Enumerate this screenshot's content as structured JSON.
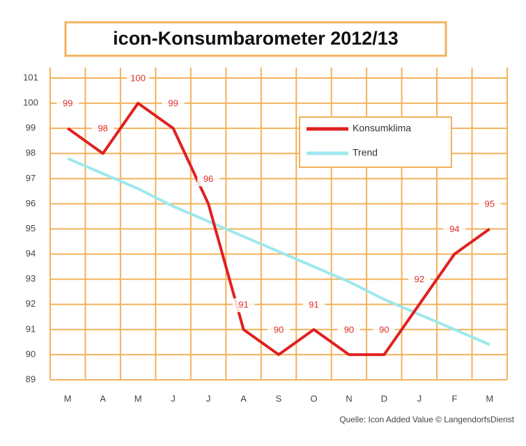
{
  "chart_data": {
    "type": "line",
    "title": "icon-Konsumbarometer 2012/13",
    "categories": [
      "M",
      "A",
      "M",
      "J",
      "J",
      "A",
      "S",
      "O",
      "N",
      "D",
      "J",
      "F",
      "M"
    ],
    "series": [
      {
        "name": "Konsumklima",
        "color": "#e02020",
        "values": [
          99,
          98,
          100,
          99,
          96,
          91,
          90,
          91,
          90,
          90,
          92,
          94,
          95
        ]
      },
      {
        "name": "Trend",
        "color": "#9ee8ee",
        "values": [
          97.8,
          97.2,
          96.6,
          95.9,
          95.3,
          94.7,
          94.1,
          93.5,
          92.9,
          92.2,
          91.6,
          91.0,
          90.4
        ]
      }
    ],
    "ylim": [
      89,
      101
    ],
    "yticks": [
      89,
      90,
      91,
      92,
      93,
      94,
      95,
      96,
      97,
      98,
      99,
      100,
      101
    ],
    "grid": true,
    "source": "Quelle: Icon Added Value © LangendorfsDienst"
  }
}
